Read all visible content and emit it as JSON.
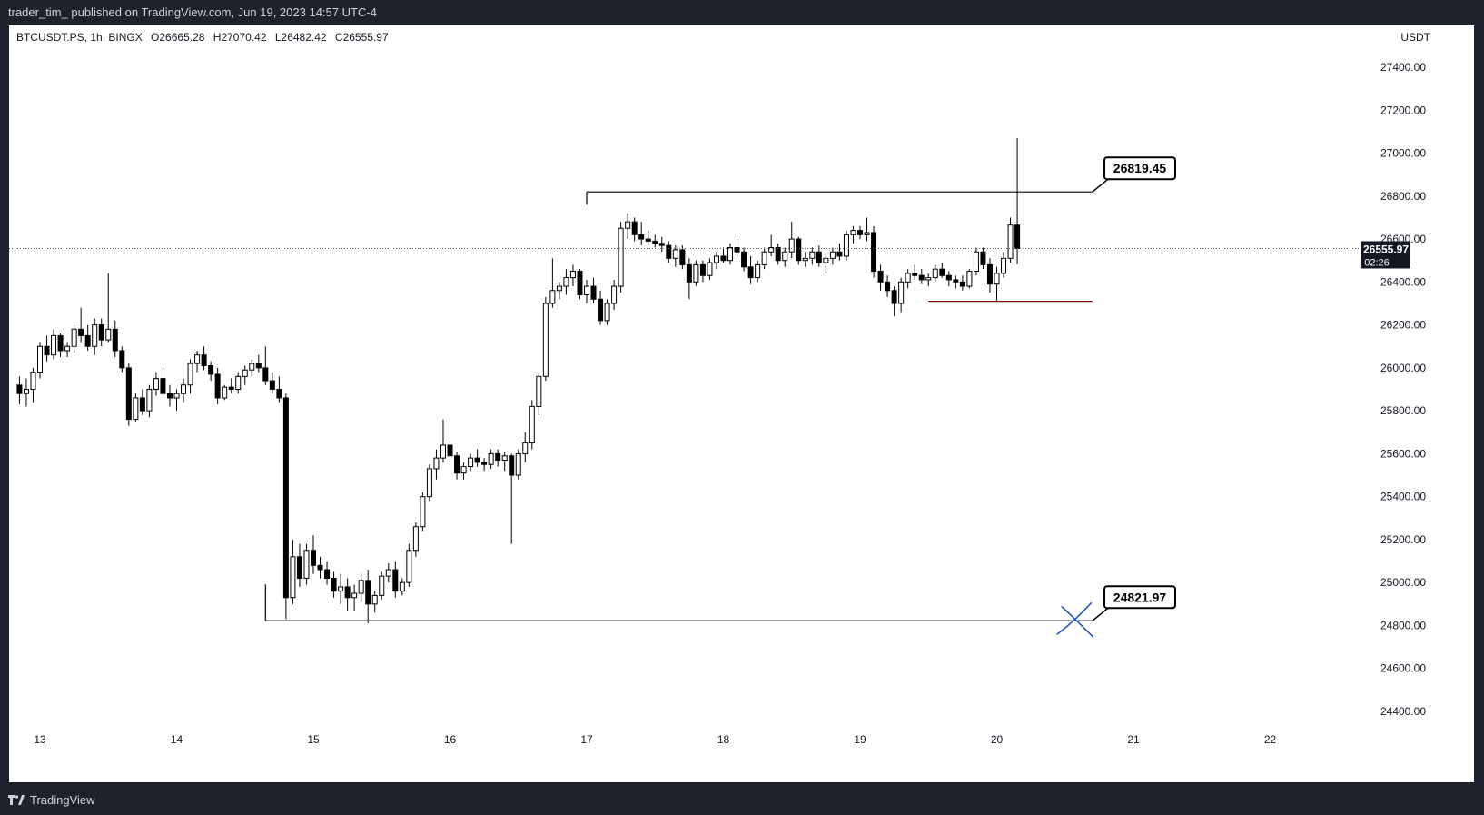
{
  "header": {
    "published": "trader_tim_ published on TradingView.com, Jun 19, 2023 14:57 UTC-4"
  },
  "legend": {
    "symbol": "BTCUSDT.PS, 1h, BINGX",
    "open": "O26665.28",
    "high": "H27070.42",
    "low": "L26482.42",
    "close": "C26555.97"
  },
  "axis": {
    "currency": "USDT"
  },
  "price_tag": {
    "value": "26555.97",
    "countdown": "02:26"
  },
  "callouts": {
    "upper": "26819.45",
    "lower": "24821.97"
  },
  "footer": {
    "brand": "TradingView"
  },
  "colors": {
    "bull_fill": "#ffffff",
    "bear_fill": "#000000",
    "candle_outline": "#000000",
    "level_line": "#000000",
    "red_line": "#8b0000",
    "cross": "#1e53c7",
    "last_price": "#131722"
  },
  "chart_data": {
    "type": "candlestick",
    "timeframe": "1h",
    "x_tick_labels": [
      "13",
      "14",
      "15",
      "16",
      "17",
      "18",
      "19",
      "20",
      "21",
      "22"
    ],
    "y_tick_labels": [
      "27400.00",
      "27200.00",
      "27000.00",
      "26800.00",
      "26600.00",
      "26400.00",
      "26200.00",
      "26000.00",
      "25800.00",
      "25600.00",
      "25400.00",
      "25200.00",
      "25000.00",
      "24800.00",
      "24600.00",
      "24400.00"
    ],
    "ylim": [
      24300,
      27620
    ],
    "grid": false,
    "last_price": 26555.97,
    "levels": [
      {
        "price": 26819.45,
        "from_day": 17.0,
        "to_day": 20.7
      },
      {
        "price": 24821.97,
        "from_day": 14.65,
        "to_day": 20.7
      },
      {
        "price": 26310,
        "from_day": 19.5,
        "to_day": 20.7
      }
    ],
    "series": [
      {
        "values": [
          [
            12.85,
            25920,
            25960,
            25830,
            25880
          ],
          [
            12.9,
            25880,
            25950,
            25820,
            25900
          ],
          [
            12.95,
            25900,
            26000,
            25840,
            25980
          ],
          [
            13.0,
            25980,
            26120,
            25950,
            26100
          ],
          [
            13.05,
            26100,
            26150,
            26030,
            26060
          ],
          [
            13.1,
            26060,
            26180,
            26040,
            26150
          ],
          [
            13.15,
            26150,
            26160,
            26050,
            26080
          ],
          [
            13.2,
            26080,
            26120,
            26050,
            26100
          ],
          [
            13.25,
            26100,
            26200,
            26070,
            26180
          ],
          [
            13.3,
            26180,
            26280,
            26120,
            26150
          ],
          [
            13.35,
            26150,
            26200,
            26080,
            26100
          ],
          [
            13.4,
            26100,
            26230,
            26060,
            26200
          ],
          [
            13.45,
            26200,
            26230,
            26100,
            26130
          ],
          [
            13.5,
            26130,
            26440,
            26120,
            26180
          ],
          [
            13.55,
            26180,
            26220,
            26050,
            26080
          ],
          [
            13.6,
            26080,
            26100,
            25980,
            26000
          ],
          [
            13.65,
            26000,
            26020,
            25730,
            25760
          ],
          [
            13.7,
            25760,
            25880,
            25750,
            25860
          ],
          [
            13.75,
            25860,
            25900,
            25780,
            25800
          ],
          [
            13.8,
            25800,
            25920,
            25770,
            25900
          ],
          [
            13.85,
            25900,
            25980,
            25870,
            25950
          ],
          [
            13.9,
            25950,
            26000,
            25860,
            25880
          ],
          [
            13.95,
            25880,
            25920,
            25820,
            25860
          ],
          [
            14.0,
            25860,
            25900,
            25800,
            25880
          ],
          [
            14.05,
            25880,
            25950,
            25840,
            25920
          ],
          [
            14.1,
            25920,
            26040,
            25880,
            26020
          ],
          [
            14.15,
            26020,
            26080,
            25980,
            26060
          ],
          [
            14.2,
            26060,
            26100,
            25990,
            26010
          ],
          [
            14.25,
            26010,
            26030,
            25940,
            25970
          ],
          [
            14.3,
            25970,
            26000,
            25830,
            25860
          ],
          [
            14.35,
            25860,
            25920,
            25850,
            25910
          ],
          [
            14.4,
            25910,
            25950,
            25880,
            25900
          ],
          [
            14.45,
            25900,
            25980,
            25880,
            25960
          ],
          [
            14.5,
            25960,
            26010,
            25920,
            25990
          ],
          [
            14.55,
            25990,
            26040,
            25960,
            26020
          ],
          [
            14.6,
            26020,
            26060,
            25980,
            26000
          ],
          [
            14.65,
            26000,
            26100,
            25920,
            25940
          ],
          [
            14.7,
            25940,
            25980,
            25880,
            25900
          ],
          [
            14.75,
            25900,
            25960,
            25840,
            25860
          ],
          [
            14.8,
            25860,
            25880,
            24830,
            24930
          ],
          [
            14.85,
            24930,
            25200,
            24900,
            25120
          ],
          [
            14.9,
            25120,
            25180,
            24980,
            25020
          ],
          [
            14.95,
            25020,
            25180,
            24990,
            25150
          ],
          [
            15.0,
            25150,
            25220,
            25040,
            25080
          ],
          [
            15.05,
            25080,
            25120,
            25020,
            25060
          ],
          [
            15.1,
            25060,
            25100,
            24990,
            25020
          ],
          [
            15.15,
            25020,
            25050,
            24930,
            24960
          ],
          [
            15.2,
            24960,
            25040,
            24900,
            24980
          ],
          [
            15.25,
            24980,
            25020,
            24870,
            24930
          ],
          [
            15.3,
            24930,
            24990,
            24870,
            24950
          ],
          [
            15.35,
            24950,
            25040,
            24910,
            25010
          ],
          [
            15.4,
            25010,
            25060,
            24810,
            24900
          ],
          [
            15.45,
            24900,
            24960,
            24860,
            24940
          ],
          [
            15.5,
            24940,
            25050,
            24920,
            25030
          ],
          [
            15.55,
            25030,
            25090,
            25000,
            25060
          ],
          [
            15.6,
            25060,
            25100,
            24930,
            24960
          ],
          [
            15.65,
            24960,
            25020,
            24940,
            25000
          ],
          [
            15.7,
            25000,
            25180,
            24980,
            25150
          ],
          [
            15.75,
            25150,
            25280,
            25120,
            25260
          ],
          [
            15.8,
            25260,
            25420,
            25240,
            25400
          ],
          [
            15.85,
            25400,
            25550,
            25380,
            25530
          ],
          [
            15.9,
            25530,
            25620,
            25480,
            25580
          ],
          [
            15.95,
            25580,
            25760,
            25560,
            25640
          ],
          [
            16.0,
            25640,
            25660,
            25560,
            25590
          ],
          [
            16.05,
            25590,
            25610,
            25480,
            25510
          ],
          [
            16.1,
            25510,
            25560,
            25480,
            25540
          ],
          [
            16.15,
            25540,
            25600,
            25520,
            25580
          ],
          [
            16.2,
            25580,
            25620,
            25540,
            25560
          ],
          [
            16.25,
            25560,
            25580,
            25520,
            25550
          ],
          [
            16.3,
            25550,
            25620,
            25530,
            25600
          ],
          [
            16.35,
            25600,
            25620,
            25540,
            25570
          ],
          [
            16.4,
            25570,
            25610,
            25520,
            25590
          ],
          [
            16.45,
            25590,
            25600,
            25180,
            25500
          ],
          [
            16.5,
            25500,
            25620,
            25480,
            25600
          ],
          [
            16.55,
            25600,
            25700,
            25560,
            25650
          ],
          [
            16.6,
            25650,
            25850,
            25620,
            25820
          ],
          [
            16.65,
            25820,
            25980,
            25780,
            25960
          ],
          [
            16.7,
            25960,
            26330,
            25940,
            26300
          ],
          [
            16.75,
            26300,
            26510,
            26280,
            26360
          ],
          [
            16.8,
            26360,
            26400,
            26320,
            26380
          ],
          [
            16.85,
            26380,
            26460,
            26340,
            26420
          ],
          [
            16.9,
            26420,
            26480,
            26380,
            26450
          ],
          [
            16.95,
            26450,
            26460,
            26320,
            26340
          ],
          [
            17.0,
            26340,
            26410,
            26300,
            26380
          ],
          [
            17.05,
            26380,
            26420,
            26300,
            26320
          ],
          [
            17.1,
            26320,
            26360,
            26200,
            26220
          ],
          [
            17.15,
            26220,
            26320,
            26200,
            26300
          ],
          [
            17.2,
            26300,
            26410,
            26270,
            26380
          ],
          [
            17.25,
            26380,
            26680,
            26350,
            26650
          ],
          [
            17.3,
            26650,
            26720,
            26600,
            26680
          ],
          [
            17.35,
            26680,
            26700,
            26590,
            26620
          ],
          [
            17.4,
            26620,
            26680,
            26570,
            26600
          ],
          [
            17.45,
            26600,
            26640,
            26570,
            26590
          ],
          [
            17.5,
            26590,
            26620,
            26560,
            26580
          ],
          [
            17.55,
            26580,
            26610,
            26540,
            26570
          ],
          [
            17.6,
            26570,
            26590,
            26490,
            26510
          ],
          [
            17.65,
            26510,
            26570,
            26470,
            26550
          ],
          [
            17.7,
            26550,
            26570,
            26460,
            26480
          ],
          [
            17.75,
            26480,
            26510,
            26320,
            26400
          ],
          [
            17.8,
            26400,
            26500,
            26380,
            26480
          ],
          [
            17.85,
            26480,
            26500,
            26400,
            26430
          ],
          [
            17.9,
            26430,
            26510,
            26410,
            26490
          ],
          [
            17.95,
            26490,
            26540,
            26460,
            26520
          ],
          [
            18.0,
            26520,
            26560,
            26490,
            26500
          ],
          [
            18.05,
            26500,
            26580,
            26480,
            26560
          ],
          [
            18.1,
            26560,
            26600,
            26520,
            26540
          ],
          [
            18.15,
            26540,
            26560,
            26450,
            26470
          ],
          [
            18.2,
            26470,
            26520,
            26390,
            26420
          ],
          [
            18.25,
            26420,
            26500,
            26400,
            26480
          ],
          [
            18.3,
            26480,
            26560,
            26460,
            26540
          ],
          [
            18.35,
            26540,
            26620,
            26520,
            26560
          ],
          [
            18.4,
            26560,
            26580,
            26480,
            26500
          ],
          [
            18.45,
            26500,
            26560,
            26470,
            26540
          ],
          [
            18.5,
            26540,
            26680,
            26510,
            26600
          ],
          [
            18.55,
            26600,
            26610,
            26480,
            26500
          ],
          [
            18.6,
            26500,
            26540,
            26470,
            26510
          ],
          [
            18.65,
            26510,
            26560,
            26480,
            26540
          ],
          [
            18.7,
            26540,
            26570,
            26470,
            26490
          ],
          [
            18.75,
            26490,
            26530,
            26440,
            26510
          ],
          [
            18.8,
            26510,
            26560,
            26480,
            26540
          ],
          [
            18.85,
            26540,
            26580,
            26500,
            26520
          ],
          [
            18.9,
            26520,
            26640,
            26500,
            26620
          ],
          [
            18.95,
            26620,
            26660,
            26580,
            26640
          ],
          [
            19.0,
            26640,
            26660,
            26600,
            26620
          ],
          [
            19.05,
            26620,
            26700,
            26590,
            26630
          ],
          [
            19.1,
            26630,
            26660,
            26420,
            26450
          ],
          [
            19.15,
            26450,
            26480,
            26360,
            26400
          ],
          [
            19.2,
            26400,
            26430,
            26330,
            26360
          ],
          [
            19.25,
            26360,
            26380,
            26240,
            26300
          ],
          [
            19.3,
            26300,
            26420,
            26260,
            26400
          ],
          [
            19.35,
            26400,
            26460,
            26370,
            26440
          ],
          [
            19.4,
            26440,
            26480,
            26410,
            26430
          ],
          [
            19.45,
            26430,
            26460,
            26390,
            26410
          ],
          [
            19.5,
            26410,
            26440,
            26380,
            26420
          ],
          [
            19.55,
            26420,
            26480,
            26400,
            26460
          ],
          [
            19.6,
            26460,
            26490,
            26420,
            26430
          ],
          [
            19.65,
            26430,
            26450,
            26380,
            26410
          ],
          [
            19.7,
            26410,
            26430,
            26370,
            26400
          ],
          [
            19.75,
            26400,
            26430,
            26360,
            26380
          ],
          [
            19.8,
            26380,
            26460,
            26370,
            26450
          ],
          [
            19.85,
            26450,
            26560,
            26430,
            26540
          ],
          [
            19.9,
            26540,
            26560,
            26460,
            26480
          ],
          [
            19.95,
            26480,
            26510,
            26350,
            26390
          ],
          [
            20.0,
            26390,
            26470,
            26310,
            26440
          ],
          [
            20.05,
            26440,
            26540,
            26420,
            26510
          ],
          [
            20.1,
            26510,
            26700,
            26490,
            26665
          ],
          [
            20.15,
            26665,
            27070,
            26482,
            26555.97
          ]
        ]
      }
    ]
  }
}
